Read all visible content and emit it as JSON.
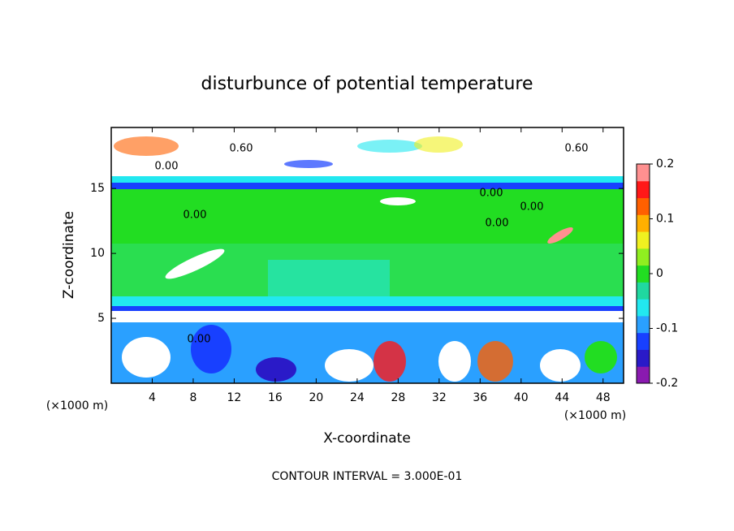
{
  "chart_data": {
    "type": "contour",
    "title": "disturbunce of potential temperature",
    "x_label": "X-coordinate",
    "y_label": "Z-coordinate",
    "x_unit_labels": [
      "(×1000 m)",
      "(×1000 m)"
    ],
    "footer": "CONTOUR INTERVAL = 3.000E-01",
    "xlim": [
      0,
      50
    ],
    "xticks": [
      4,
      8,
      12,
      16,
      20,
      24,
      28,
      32,
      36,
      40,
      44,
      48
    ],
    "ylim": [
      0,
      19.7
    ],
    "yticks": [
      5,
      10,
      15
    ],
    "colorbar_lim": [
      -0.2,
      0.2
    ],
    "colorbar_ticks": [
      0.2,
      0.1,
      0,
      -0.1,
      -0.2
    ],
    "colormap": [
      "#8a1ab0",
      "#2a1ac8",
      "#1840ff",
      "#2aa0ff",
      "#22e8f0",
      "#20d8a0",
      "#22dd22",
      "#90ee20",
      "#f0f020",
      "#ffb000",
      "#ff6000",
      "#ff1818",
      "#ff9090"
    ],
    "contour_labels": [
      "0.60",
      "0.60",
      "0.00",
      "0.00",
      "0.00",
      "0.00",
      "0.00",
      "0.00"
    ]
  }
}
